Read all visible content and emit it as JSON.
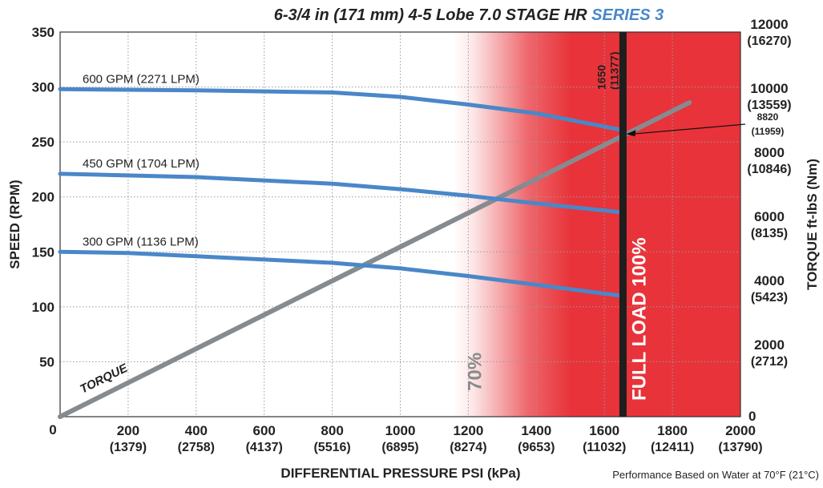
{
  "chart_data": {
    "type": "line",
    "title_main": "6-3/4 in (171 mm) 4-5 Lobe 7.0 STAGE HR ",
    "title_series": "SERIES 3",
    "xlabel": "DIFFERENTIAL PRESSURE  PSI (kPa)",
    "ylabel": "SPEED (RPM)",
    "y2label": "TORQUE  ft-lbS (Nm)",
    "footnote": "Performance Based on Water at 70°F (21°C)",
    "xlim": [
      0,
      2000
    ],
    "ylim": [
      0,
      350
    ],
    "y2lim": [
      0,
      12000
    ],
    "x_ticks": [
      {
        "psi": 0,
        "label": "0",
        "sub": ""
      },
      {
        "psi": 200,
        "label": "200",
        "sub": "(1379)"
      },
      {
        "psi": 400,
        "label": "400",
        "sub": "(2758)"
      },
      {
        "psi": 600,
        "label": "600",
        "sub": "(4137)"
      },
      {
        "psi": 800,
        "label": "800",
        "sub": "(5516)"
      },
      {
        "psi": 1000,
        "label": "1000",
        "sub": "(6895)"
      },
      {
        "psi": 1200,
        "label": "1200",
        "sub": "(8274)"
      },
      {
        "psi": 1400,
        "label": "1400",
        "sub": "(9653)"
      },
      {
        "psi": 1600,
        "label": "1600",
        "sub": "(11032)"
      },
      {
        "psi": 1800,
        "label": "1800",
        "sub": "(12411)"
      },
      {
        "psi": 2000,
        "label": "2000",
        "sub": "(13790)"
      }
    ],
    "y_ticks": [
      {
        "rpm": 50,
        "label": "50"
      },
      {
        "rpm": 100,
        "label": "100"
      },
      {
        "rpm": 150,
        "label": "150"
      },
      {
        "rpm": 200,
        "label": "200"
      },
      {
        "rpm": 250,
        "label": "250"
      },
      {
        "rpm": 300,
        "label": "300"
      },
      {
        "rpm": 350,
        "label": "350"
      }
    ],
    "y2_ticks": [
      {
        "torque": 0,
        "label": "0",
        "sub": ""
      },
      {
        "torque": 2000,
        "label": "2000",
        "sub": "(2712)"
      },
      {
        "torque": 4000,
        "label": "4000",
        "sub": "(5423)"
      },
      {
        "torque": 6000,
        "label": "6000",
        "sub": "(8135)"
      },
      {
        "torque": 8000,
        "label": "8000",
        "sub": "(10846)"
      },
      {
        "torque": 10000,
        "label": "10000",
        "sub": "(13559)"
      },
      {
        "torque": 12000,
        "label": "12000",
        "sub": "(16270)"
      }
    ],
    "speed_series": [
      {
        "name": "600 GPM (2271 LPM)",
        "x": [
          0,
          400,
          800,
          1000,
          1200,
          1400,
          1500,
          1600,
          1650
        ],
        "y": [
          298,
          297,
          295,
          291,
          284,
          276,
          270,
          264,
          261
        ]
      },
      {
        "name": "450 GPM (1704 LPM)",
        "x": [
          0,
          400,
          800,
          1000,
          1200,
          1400,
          1650
        ],
        "y": [
          221,
          218,
          212,
          207,
          201,
          194,
          186
        ]
      },
      {
        "name": "300 GPM (1136 LPM)",
        "x": [
          0,
          200,
          400,
          800,
          1000,
          1200,
          1400,
          1650
        ],
        "y": [
          150,
          149,
          146,
          140,
          135,
          128,
          120,
          110
        ]
      }
    ],
    "torque_series": {
      "label": "TORQUE",
      "x": [
        0,
        1850
      ],
      "y": [
        0,
        9800
      ]
    },
    "full_load": {
      "psi": 1650,
      "label": "FULL LOAD 100%",
      "line_label": "1650",
      "line_label_sub": "(11377)"
    },
    "seventy_percent": {
      "psi": 1155,
      "label": "70%"
    },
    "annotation": {
      "psi": 1650,
      "torque": 8820,
      "label": "8820",
      "sub": "(11959)"
    },
    "colors": {
      "speed": "#4a87c8",
      "torque": "#868b8f",
      "zone": "#e8333a",
      "full_load_line": "#1e1e1e",
      "series_title": "#4a87c8"
    }
  }
}
